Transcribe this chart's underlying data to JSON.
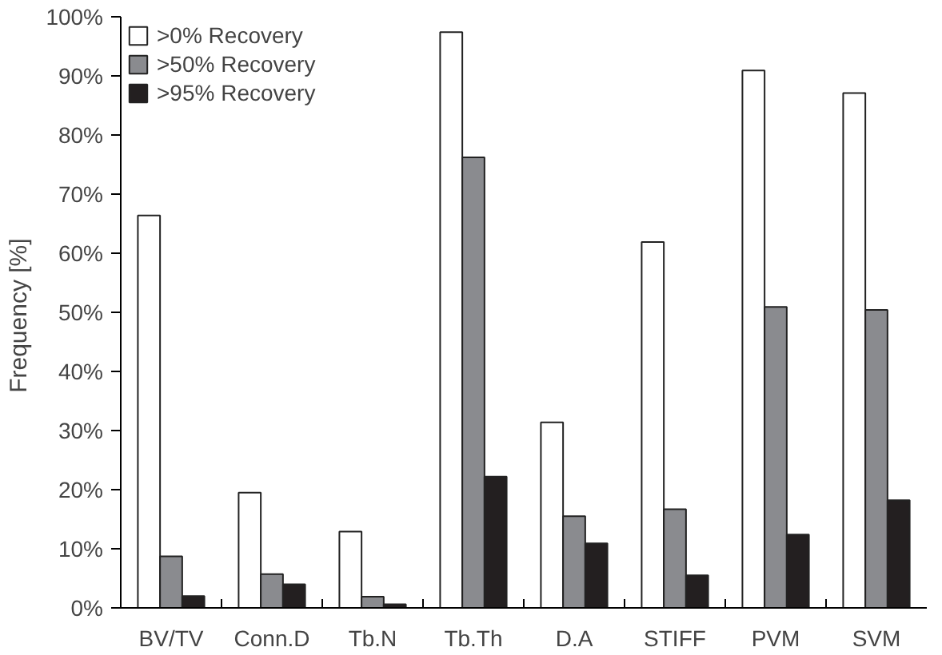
{
  "chart_data": {
    "type": "bar",
    "ylabel": "Frequency  [%]",
    "categories": [
      "BV/TV",
      "Conn.D",
      "Tb.N",
      "Tb.Th",
      "D.A",
      "STIFF",
      "PVM",
      "SVM"
    ],
    "series": [
      {
        "name": ">0% Recovery",
        "color": "#ffffff",
        "values": [
          66.4,
          19.5,
          12.9,
          97.4,
          31.4,
          61.9,
          90.9,
          87.1
        ]
      },
      {
        "name": ">50% Recovery",
        "color": "#8a8b8f",
        "values": [
          8.7,
          5.7,
          1.9,
          76.2,
          15.5,
          16.7,
          50.9,
          50.4
        ]
      },
      {
        "name": ">95% Recovery",
        "color": "#231f20",
        "values": [
          2.0,
          4.0,
          0.6,
          22.2,
          10.9,
          5.5,
          12.4,
          18.2
        ]
      }
    ],
    "ylim": [
      0,
      100
    ],
    "yticks": [
      {
        "value": 0,
        "label": "0%"
      },
      {
        "value": 10,
        "label": "10%"
      },
      {
        "value": 20,
        "label": "20%"
      },
      {
        "value": 30,
        "label": "30%"
      },
      {
        "value": 40,
        "label": "40%"
      },
      {
        "value": 50,
        "label": "50%"
      },
      {
        "value": 60,
        "label": "60%"
      },
      {
        "value": 70,
        "label": "70%"
      },
      {
        "value": 80,
        "label": "80%"
      },
      {
        "value": 90,
        "label": "90%"
      },
      {
        "value": 100,
        "label": "100%"
      }
    ],
    "grid": false,
    "legend": "top left"
  }
}
